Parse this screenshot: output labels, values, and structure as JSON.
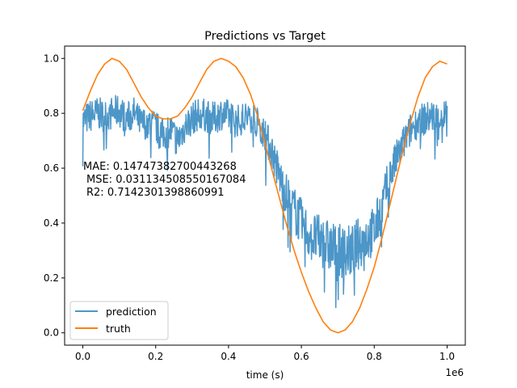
{
  "chart_data": {
    "type": "line",
    "title": "Predictions vs Target",
    "xlabel": "time (s)",
    "ylabel": "",
    "x_offset_label": "1e6",
    "xlim": [
      -50000,
      1050000
    ],
    "ylim": [
      -0.045,
      1.045
    ],
    "xticks": [
      0.0,
      200000,
      400000,
      600000,
      800000,
      1000000
    ],
    "xtick_labels": [
      "0.0",
      "0.2",
      "0.4",
      "0.6",
      "0.8",
      "1.0"
    ],
    "yticks": [
      0.0,
      0.2,
      0.4,
      0.6,
      0.8,
      1.0
    ],
    "ytick_labels": [
      "0.0",
      "0.2",
      "0.4",
      "0.6",
      "0.8",
      "1.0"
    ],
    "grid": false,
    "legend_position": "lower-left",
    "annotation": [
      "MAE: 0.14747382700443268",
      "MSE: 0.031134508550167084",
      "R2: 0.7142301398860991"
    ],
    "series": [
      {
        "name": "prediction",
        "color": "#4c96c8",
        "x": [
          0,
          20000,
          40000,
          60000,
          80000,
          100000,
          120000,
          140000,
          160000,
          180000,
          200000,
          220000,
          240000,
          260000,
          280000,
          300000,
          320000,
          340000,
          360000,
          380000,
          400000,
          420000,
          440000,
          460000,
          480000,
          500000,
          520000,
          540000,
          560000,
          580000,
          600000,
          620000,
          640000,
          660000,
          680000,
          700000,
          720000,
          740000,
          760000,
          780000,
          800000,
          820000,
          840000,
          860000,
          880000,
          900000,
          920000,
          940000,
          960000,
          980000,
          1000000
        ],
        "y": [
          0.77,
          0.79,
          0.8,
          0.79,
          0.8,
          0.81,
          0.78,
          0.8,
          0.76,
          0.77,
          0.75,
          0.72,
          0.74,
          0.7,
          0.75,
          0.78,
          0.8,
          0.79,
          0.78,
          0.8,
          0.79,
          0.77,
          0.78,
          0.79,
          0.78,
          0.72,
          0.66,
          0.57,
          0.5,
          0.45,
          0.4,
          0.36,
          0.34,
          0.33,
          0.31,
          0.3,
          0.29,
          0.3,
          0.33,
          0.35,
          0.37,
          0.45,
          0.56,
          0.63,
          0.69,
          0.74,
          0.77,
          0.78,
          0.79,
          0.78,
          0.8
        ],
        "noise_amplitude": 0.06
      },
      {
        "name": "truth",
        "color": "#ff7f0e",
        "x": [
          0,
          20000,
          40000,
          60000,
          80000,
          100000,
          120000,
          140000,
          160000,
          180000,
          200000,
          220000,
          240000,
          260000,
          280000,
          300000,
          320000,
          340000,
          360000,
          380000,
          400000,
          420000,
          440000,
          460000,
          480000,
          500000,
          520000,
          540000,
          560000,
          580000,
          600000,
          620000,
          640000,
          660000,
          680000,
          700000,
          720000,
          740000,
          760000,
          780000,
          800000,
          820000,
          840000,
          860000,
          880000,
          900000,
          920000,
          940000,
          960000,
          980000,
          1000000
        ],
        "y": [
          0.81,
          0.88,
          0.94,
          0.98,
          1.0,
          0.99,
          0.96,
          0.91,
          0.86,
          0.82,
          0.79,
          0.78,
          0.78,
          0.79,
          0.82,
          0.86,
          0.91,
          0.96,
          0.99,
          1.0,
          0.99,
          0.97,
          0.93,
          0.87,
          0.79,
          0.69,
          0.59,
          0.49,
          0.39,
          0.3,
          0.22,
          0.15,
          0.09,
          0.04,
          0.01,
          0.0,
          0.01,
          0.04,
          0.09,
          0.16,
          0.24,
          0.34,
          0.45,
          0.56,
          0.67,
          0.77,
          0.86,
          0.93,
          0.97,
          0.99,
          0.98
        ]
      }
    ]
  }
}
